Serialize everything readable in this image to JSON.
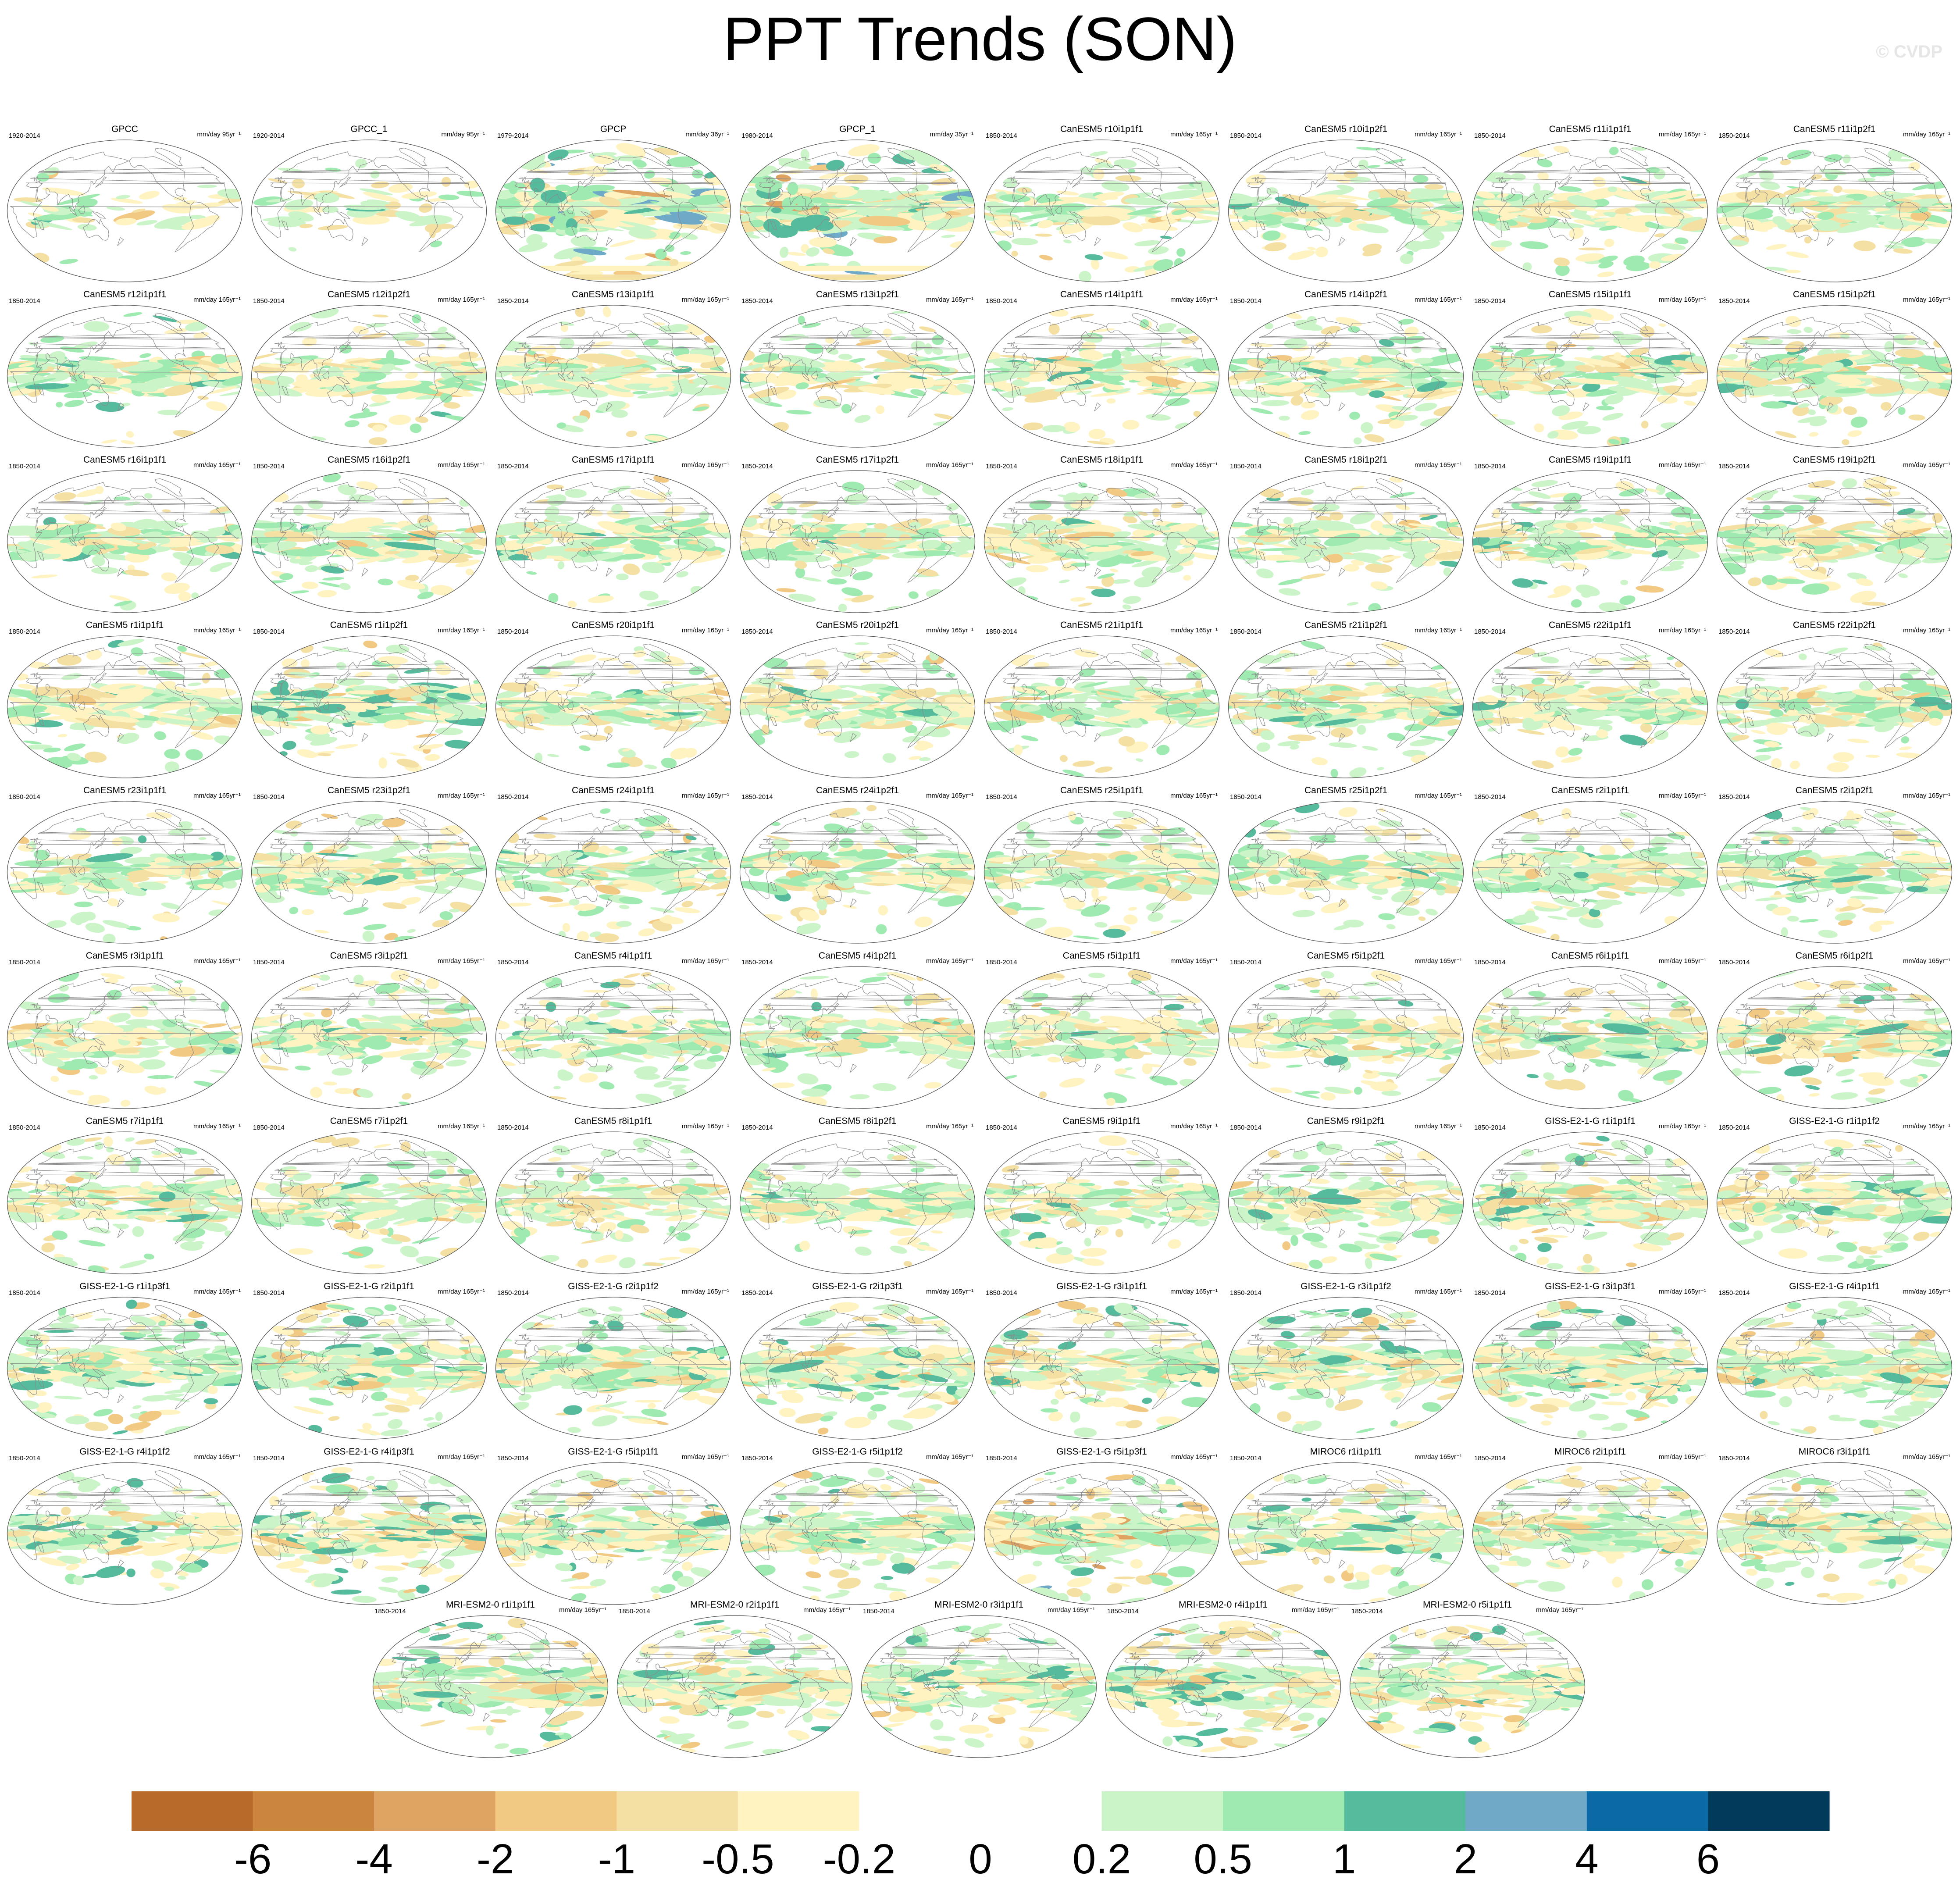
{
  "chart_data": {
    "type": "heatmap",
    "title": "PPT Trends (SON)",
    "copyright": "© CVDP",
    "projection": "Robinson global map with coastlines",
    "colorbar": {
      "levels": [
        "-6",
        "-4",
        "-2",
        "-1",
        "-0.5",
        "-0.2",
        "0",
        "0.2",
        "0.5",
        "1",
        "2",
        "4",
        "6"
      ],
      "colors": [
        "#b86a2a",
        "#cc853f",
        "#e0a462",
        "#f2c983",
        "#f5e0a3",
        "#fff3c2",
        "#ffffff",
        "#ffffff",
        "#cbf5c8",
        "#9eeab0",
        "#55bb9c",
        "#6fa9c8",
        "#0b6aa6",
        "#003b5c"
      ]
    },
    "panels": [
      {
        "title": "GPCC",
        "years": "1920-2014",
        "units": "mm/day 95yr⁻¹",
        "coverage": "land",
        "intensity": 0.6
      },
      {
        "title": "GPCC_1",
        "years": "1920-2014",
        "units": "mm/day 95yr⁻¹",
        "coverage": "land",
        "intensity": 0.6
      },
      {
        "title": "GPCP",
        "years": "1979-2014",
        "units": "mm/day 36yr⁻¹",
        "coverage": "global",
        "intensity": 1.6
      },
      {
        "title": "GPCP_1",
        "years": "1980-2014",
        "units": "mm/day 35yr⁻¹",
        "coverage": "global",
        "intensity": 1.6
      },
      {
        "title": "CanESM5 r10i1p1f1",
        "years": "1850-2014",
        "units": "mm/day 165yr⁻¹",
        "coverage": "global",
        "intensity": 0.8
      },
      {
        "title": "CanESM5 r10i1p2f1",
        "years": "1850-2014",
        "units": "mm/day 165yr⁻¹",
        "coverage": "global",
        "intensity": 0.8
      },
      {
        "title": "CanESM5 r11i1p1f1",
        "years": "1850-2014",
        "units": "mm/day 165yr⁻¹",
        "coverage": "global",
        "intensity": 0.9
      },
      {
        "title": "CanESM5 r11i1p2f1",
        "years": "1850-2014",
        "units": "mm/day 165yr⁻¹",
        "coverage": "global",
        "intensity": 0.9
      },
      {
        "title": "CanESM5 r12i1p1f1",
        "years": "1850-2014",
        "units": "mm/day 165yr⁻¹",
        "coverage": "global",
        "intensity": 0.9
      },
      {
        "title": "CanESM5 r12i1p2f1",
        "years": "1850-2014",
        "units": "mm/day 165yr⁻¹",
        "coverage": "global",
        "intensity": 0.9
      },
      {
        "title": "CanESM5 r13i1p1f1",
        "years": "1850-2014",
        "units": "mm/day 165yr⁻¹",
        "coverage": "global",
        "intensity": 0.9
      },
      {
        "title": "CanESM5 r13i1p2f1",
        "years": "1850-2014",
        "units": "mm/day 165yr⁻¹",
        "coverage": "global",
        "intensity": 0.8
      },
      {
        "title": "CanESM5 r14i1p1f1",
        "years": "1850-2014",
        "units": "mm/day 165yr⁻¹",
        "coverage": "global",
        "intensity": 0.9
      },
      {
        "title": "CanESM5 r14i1p2f1",
        "years": "1850-2014",
        "units": "mm/day 165yr⁻¹",
        "coverage": "global",
        "intensity": 1.0
      },
      {
        "title": "CanESM5 r15i1p1f1",
        "years": "1850-2014",
        "units": "mm/day 165yr⁻¹",
        "coverage": "global",
        "intensity": 1.0
      },
      {
        "title": "CanESM5 r15i1p2f1",
        "years": "1850-2014",
        "units": "mm/day 165yr⁻¹",
        "coverage": "global",
        "intensity": 1.0
      },
      {
        "title": "CanESM5 r16i1p1f1",
        "years": "1850-2014",
        "units": "mm/day 165yr⁻¹",
        "coverage": "global",
        "intensity": 0.9
      },
      {
        "title": "CanESM5 r16i1p2f1",
        "years": "1850-2014",
        "units": "mm/day 165yr⁻¹",
        "coverage": "global",
        "intensity": 0.9
      },
      {
        "title": "CanESM5 r17i1p1f1",
        "years": "1850-2014",
        "units": "mm/day 165yr⁻¹",
        "coverage": "global",
        "intensity": 0.9
      },
      {
        "title": "CanESM5 r17i1p2f1",
        "years": "1850-2014",
        "units": "mm/day 165yr⁻¹",
        "coverage": "global",
        "intensity": 0.9
      },
      {
        "title": "CanESM5 r18i1p1f1",
        "years": "1850-2014",
        "units": "mm/day 165yr⁻¹",
        "coverage": "global",
        "intensity": 1.0
      },
      {
        "title": "CanESM5 r18i1p2f1",
        "years": "1850-2014",
        "units": "mm/day 165yr⁻¹",
        "coverage": "global",
        "intensity": 0.9
      },
      {
        "title": "CanESM5 r19i1p1f1",
        "years": "1850-2014",
        "units": "mm/day 165yr⁻¹",
        "coverage": "global",
        "intensity": 0.9
      },
      {
        "title": "CanESM5 r19i1p2f1",
        "years": "1850-2014",
        "units": "mm/day 165yr⁻¹",
        "coverage": "global",
        "intensity": 0.9
      },
      {
        "title": "CanESM5 r1i1p1f1",
        "years": "1850-2014",
        "units": "mm/day 165yr⁻¹",
        "coverage": "global",
        "intensity": 1.0
      },
      {
        "title": "CanESM5 r1i1p2f1",
        "years": "1850-2014",
        "units": "mm/day 165yr⁻¹",
        "coverage": "global",
        "intensity": 1.1
      },
      {
        "title": "CanESM5 r20i1p1f1",
        "years": "1850-2014",
        "units": "mm/day 165yr⁻¹",
        "coverage": "global",
        "intensity": 0.9
      },
      {
        "title": "CanESM5 r20i1p2f1",
        "years": "1850-2014",
        "units": "mm/day 165yr⁻¹",
        "coverage": "global",
        "intensity": 1.0
      },
      {
        "title": "CanESM5 r21i1p1f1",
        "years": "1850-2014",
        "units": "mm/day 165yr⁻¹",
        "coverage": "global",
        "intensity": 0.9
      },
      {
        "title": "CanESM5 r21i1p2f1",
        "years": "1850-2014",
        "units": "mm/day 165yr⁻¹",
        "coverage": "global",
        "intensity": 1.0
      },
      {
        "title": "CanESM5 r22i1p1f1",
        "years": "1850-2014",
        "units": "mm/day 165yr⁻¹",
        "coverage": "global",
        "intensity": 0.9
      },
      {
        "title": "CanESM5 r22i1p2f1",
        "years": "1850-2014",
        "units": "mm/day 165yr⁻¹",
        "coverage": "global",
        "intensity": 0.9
      },
      {
        "title": "CanESM5 r23i1p1f1",
        "years": "1850-2014",
        "units": "mm/day 165yr⁻¹",
        "coverage": "global",
        "intensity": 0.9
      },
      {
        "title": "CanESM5 r23i1p2f1",
        "years": "1850-2014",
        "units": "mm/day 165yr⁻¹",
        "coverage": "global",
        "intensity": 0.9
      },
      {
        "title": "CanESM5 r24i1p1f1",
        "years": "1850-2014",
        "units": "mm/day 165yr⁻¹",
        "coverage": "global",
        "intensity": 0.9
      },
      {
        "title": "CanESM5 r24i1p2f1",
        "years": "1850-2014",
        "units": "mm/day 165yr⁻¹",
        "coverage": "global",
        "intensity": 0.9
      },
      {
        "title": "CanESM5 r25i1p1f1",
        "years": "1850-2014",
        "units": "mm/day 165yr⁻¹",
        "coverage": "global",
        "intensity": 1.0
      },
      {
        "title": "CanESM5 r25i1p2f1",
        "years": "1850-2014",
        "units": "mm/day 165yr⁻¹",
        "coverage": "global",
        "intensity": 0.9
      },
      {
        "title": "CanESM5 r2i1p1f1",
        "years": "1850-2014",
        "units": "mm/day 165yr⁻¹",
        "coverage": "global",
        "intensity": 1.0
      },
      {
        "title": "CanESM5 r2i1p2f1",
        "years": "1850-2014",
        "units": "mm/day 165yr⁻¹",
        "coverage": "global",
        "intensity": 0.9
      },
      {
        "title": "CanESM5 r3i1p1f1",
        "years": "1850-2014",
        "units": "mm/day 165yr⁻¹",
        "coverage": "global",
        "intensity": 0.9
      },
      {
        "title": "CanESM5 r3i1p2f1",
        "years": "1850-2014",
        "units": "mm/day 165yr⁻¹",
        "coverage": "global",
        "intensity": 0.9
      },
      {
        "title": "CanESM5 r4i1p1f1",
        "years": "1850-2014",
        "units": "mm/day 165yr⁻¹",
        "coverage": "global",
        "intensity": 0.9
      },
      {
        "title": "CanESM5 r4i1p2f1",
        "years": "1850-2014",
        "units": "mm/day 165yr⁻¹",
        "coverage": "global",
        "intensity": 1.0
      },
      {
        "title": "CanESM5 r5i1p1f1",
        "years": "1850-2014",
        "units": "mm/day 165yr⁻¹",
        "coverage": "global",
        "intensity": 0.9
      },
      {
        "title": "CanESM5 r5i1p2f1",
        "years": "1850-2014",
        "units": "mm/day 165yr⁻¹",
        "coverage": "global",
        "intensity": 0.9
      },
      {
        "title": "CanESM5 r6i1p1f1",
        "years": "1850-2014",
        "units": "mm/day 165yr⁻¹",
        "coverage": "global",
        "intensity": 1.0
      },
      {
        "title": "CanESM5 r6i1p2f1",
        "years": "1850-2014",
        "units": "mm/day 165yr⁻¹",
        "coverage": "global",
        "intensity": 1.2
      },
      {
        "title": "CanESM5 r7i1p1f1",
        "years": "1850-2014",
        "units": "mm/day 165yr⁻¹",
        "coverage": "global",
        "intensity": 1.0
      },
      {
        "title": "CanESM5 r7i1p2f1",
        "years": "1850-2014",
        "units": "mm/day 165yr⁻¹",
        "coverage": "global",
        "intensity": 0.9
      },
      {
        "title": "CanESM5 r8i1p1f1",
        "years": "1850-2014",
        "units": "mm/day 165yr⁻¹",
        "coverage": "global",
        "intensity": 0.9
      },
      {
        "title": "CanESM5 r8i1p2f1",
        "years": "1850-2014",
        "units": "mm/day 165yr⁻¹",
        "coverage": "global",
        "intensity": 0.9
      },
      {
        "title": "CanESM5 r9i1p1f1",
        "years": "1850-2014",
        "units": "mm/day 165yr⁻¹",
        "coverage": "global",
        "intensity": 0.9
      },
      {
        "title": "CanESM5 r9i1p2f1",
        "years": "1850-2014",
        "units": "mm/day 165yr⁻¹",
        "coverage": "global",
        "intensity": 1.0
      },
      {
        "title": "GISS-E2-1-G r1i1p1f1",
        "years": "1850-2014",
        "units": "mm/day 165yr⁻¹",
        "coverage": "global",
        "intensity": 1.1
      },
      {
        "title": "GISS-E2-1-G r1i1p1f2",
        "years": "1850-2014",
        "units": "mm/day 165yr⁻¹",
        "coverage": "global",
        "intensity": 1.0
      },
      {
        "title": "GISS-E2-1-G r1i1p3f1",
        "years": "1850-2014",
        "units": "mm/day 165yr⁻¹",
        "coverage": "global",
        "intensity": 1.1
      },
      {
        "title": "GISS-E2-1-G r2i1p1f1",
        "years": "1850-2014",
        "units": "mm/day 165yr⁻¹",
        "coverage": "global",
        "intensity": 1.2
      },
      {
        "title": "GISS-E2-1-G r2i1p1f2",
        "years": "1850-2014",
        "units": "mm/day 165yr⁻¹",
        "coverage": "global",
        "intensity": 1.3
      },
      {
        "title": "GISS-E2-1-G r2i1p3f1",
        "years": "1850-2014",
        "units": "mm/day 165yr⁻¹",
        "coverage": "global",
        "intensity": 1.2
      },
      {
        "title": "GISS-E2-1-G r3i1p1f1",
        "years": "1850-2014",
        "units": "mm/day 165yr⁻¹",
        "coverage": "global",
        "intensity": 1.2
      },
      {
        "title": "GISS-E2-1-G r3i1p1f2",
        "years": "1850-2014",
        "units": "mm/day 165yr⁻¹",
        "coverage": "global",
        "intensity": 1.1
      },
      {
        "title": "GISS-E2-1-G r3i1p3f1",
        "years": "1850-2014",
        "units": "mm/day 165yr⁻¹",
        "coverage": "global",
        "intensity": 1.3
      },
      {
        "title": "GISS-E2-1-G r4i1p1f1",
        "years": "1850-2014",
        "units": "mm/day 165yr⁻¹",
        "coverage": "global",
        "intensity": 1.2
      },
      {
        "title": "GISS-E2-1-G r4i1p1f2",
        "years": "1850-2014",
        "units": "mm/day 165yr⁻¹",
        "coverage": "global",
        "intensity": 1.1
      },
      {
        "title": "GISS-E2-1-G r4i1p3f1",
        "years": "1850-2014",
        "units": "mm/day 165yr⁻¹",
        "coverage": "global",
        "intensity": 1.2
      },
      {
        "title": "GISS-E2-1-G r5i1p1f1",
        "years": "1850-2014",
        "units": "mm/day 165yr⁻¹",
        "coverage": "global",
        "intensity": 1.1
      },
      {
        "title": "GISS-E2-1-G r5i1p1f2",
        "years": "1850-2014",
        "units": "mm/day 165yr⁻¹",
        "coverage": "global",
        "intensity": 1.3
      },
      {
        "title": "GISS-E2-1-G r5i1p3f1",
        "years": "1850-2014",
        "units": "mm/day 165yr⁻¹",
        "coverage": "global",
        "intensity": 1.4
      },
      {
        "title": "MIROC6 r1i1p1f1",
        "years": "1850-2014",
        "units": "mm/day 165yr⁻¹",
        "coverage": "global",
        "intensity": 1.1
      },
      {
        "title": "MIROC6 r2i1p1f1",
        "years": "1850-2014",
        "units": "mm/day 165yr⁻¹",
        "coverage": "global",
        "intensity": 1.0
      },
      {
        "title": "MIROC6 r3i1p1f1",
        "years": "1850-2014",
        "units": "mm/day 165yr⁻¹",
        "coverage": "global",
        "intensity": 1.2
      },
      {
        "title": "MRI-ESM2-0 r1i1p1f1",
        "years": "1850-2014",
        "units": "mm/day 165yr⁻¹",
        "coverage": "global",
        "intensity": 1.2
      },
      {
        "title": "MRI-ESM2-0 r2i1p1f1",
        "years": "1850-2014",
        "units": "mm/day 165yr⁻¹",
        "coverage": "global",
        "intensity": 1.3
      },
      {
        "title": "MRI-ESM2-0 r3i1p1f1",
        "years": "1850-2014",
        "units": "mm/day 165yr⁻¹",
        "coverage": "global",
        "intensity": 1.1
      },
      {
        "title": "MRI-ESM2-0 r4i1p1f1",
        "years": "1850-2014",
        "units": "mm/day 165yr⁻¹",
        "coverage": "global",
        "intensity": 1.3
      },
      {
        "title": "MRI-ESM2-0 r5i1p1f1",
        "years": "1850-2014",
        "units": "mm/day 165yr⁻¹",
        "coverage": "global",
        "intensity": 1.2
      }
    ]
  }
}
